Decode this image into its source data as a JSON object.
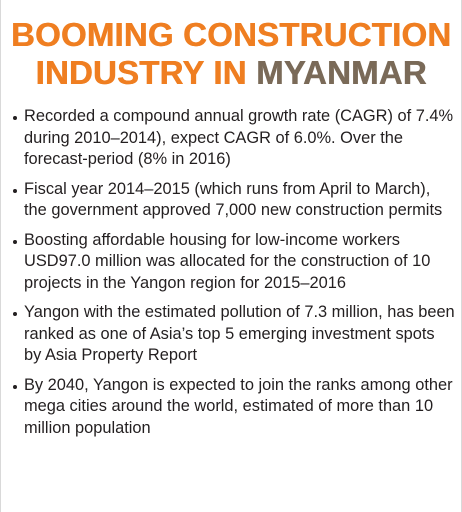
{
  "headline": {
    "line1": "BOOMING CONSTRUCTION",
    "line2_part1": "INDUSTRY IN ",
    "line2_part2": "MYANMAR"
  },
  "bullets": [
    "Recorded a compound annual growth rate (CAGR) of 7.4% during 2010–2014), expect CAGR of 6.0%. Over the forecast-period (8% in 2016)",
    "Fiscal year 2014–2015 (which runs from April to March), the government approved 7,000 new construction permits",
    "Boosting affordable housing for low-income workers USD97.0 million was allocated for the construction of 10 projects in the Yangon region for 2015–2016",
    "Yangon with the estimated pollution of 7.3 million, has been ranked as one of Asia’s top 5 emerging investment spots by Asia Property Report",
    "By 2040, Yangon is expected to join the ranks among other mega cities around the world, estimated of more than 10 million population"
  ],
  "colors": {
    "accent": "#ef7e21",
    "country": "#7a6a58",
    "text": "#231f20"
  }
}
